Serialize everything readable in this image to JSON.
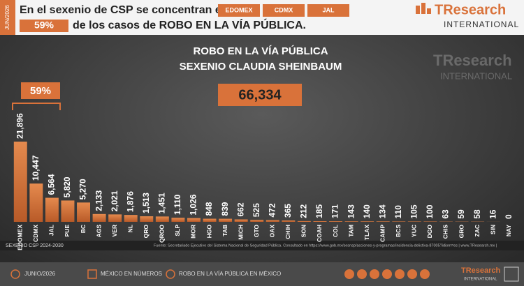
{
  "header": {
    "date": "JUN/2026",
    "line1": "En el sexenio de CSP se concentran en",
    "badges": [
      "EDOMEX",
      "CDMX",
      "JAL"
    ],
    "line2": "de los casos de ROBO EN LA VÍA PÚBLICA."
  },
  "logo": {
    "name": "TResearch",
    "sub": "INTERNATIONAL"
  },
  "chart_data": {
    "type": "bar",
    "title": "ROBO EN LA VÍA PÚBLICA",
    "subtitle": "SEXENIO CLAUDIA SHEINBAUM",
    "total": 66334,
    "total_label": "66,334",
    "share": 59,
    "share_label": "59%",
    "color": "#d9723a",
    "categories": [
      "EDOMEX",
      "CDMX",
      "JAL",
      "PUE",
      "BC",
      "AGS",
      "VER",
      "NL",
      "QRO",
      "QROO",
      "SLP",
      "MOR",
      "HGO",
      "TAB",
      "MICH",
      "GTO",
      "OAX",
      "CHIH",
      "SON",
      "COAH",
      "COL",
      "TAM",
      "TLAX",
      "CAMP",
      "BCS",
      "YUC",
      "DGO",
      "CHIS",
      "GRO",
      "ZAC",
      "SIN",
      "NAY"
    ],
    "values": [
      21896,
      10447,
      6564,
      5820,
      5270,
      2133,
      2021,
      1876,
      1513,
      1451,
      1110,
      1026,
      848,
      839,
      662,
      525,
      472,
      365,
      212,
      185,
      171,
      143,
      140,
      134,
      110,
      105,
      100,
      63,
      59,
      58,
      16,
      0
    ],
    "value_labels": [
      "21,896",
      "10,447",
      "6,564",
      "5,820",
      "5,270",
      "2,133",
      "2,021",
      "1,876",
      "1,513",
      "1,451",
      "1,110",
      "1,026",
      "848",
      "839",
      "662",
      "525",
      "472",
      "365",
      "212",
      "185",
      "171",
      "143",
      "140",
      "134",
      "110",
      "105",
      "100",
      "63",
      "59",
      "58",
      "16",
      "0"
    ]
  },
  "footer": {
    "period": "SEXENIO CSP 2024-2030",
    "source": "Fuente: Secretariado Ejecutivo del Sistema Nacional de Seguridad Pública. Consultado en https://www.gob.mx/sesnsp/acciones-y-programas/incidencia-delictiva-87005?idiom=es | www.TResearch.mx |",
    "items": [
      "JUNIO/2026",
      "MÉXICO EN NÚMEROS",
      "ROBO EN LA VÍA PÚBLICA EN MÉXICO"
    ]
  }
}
